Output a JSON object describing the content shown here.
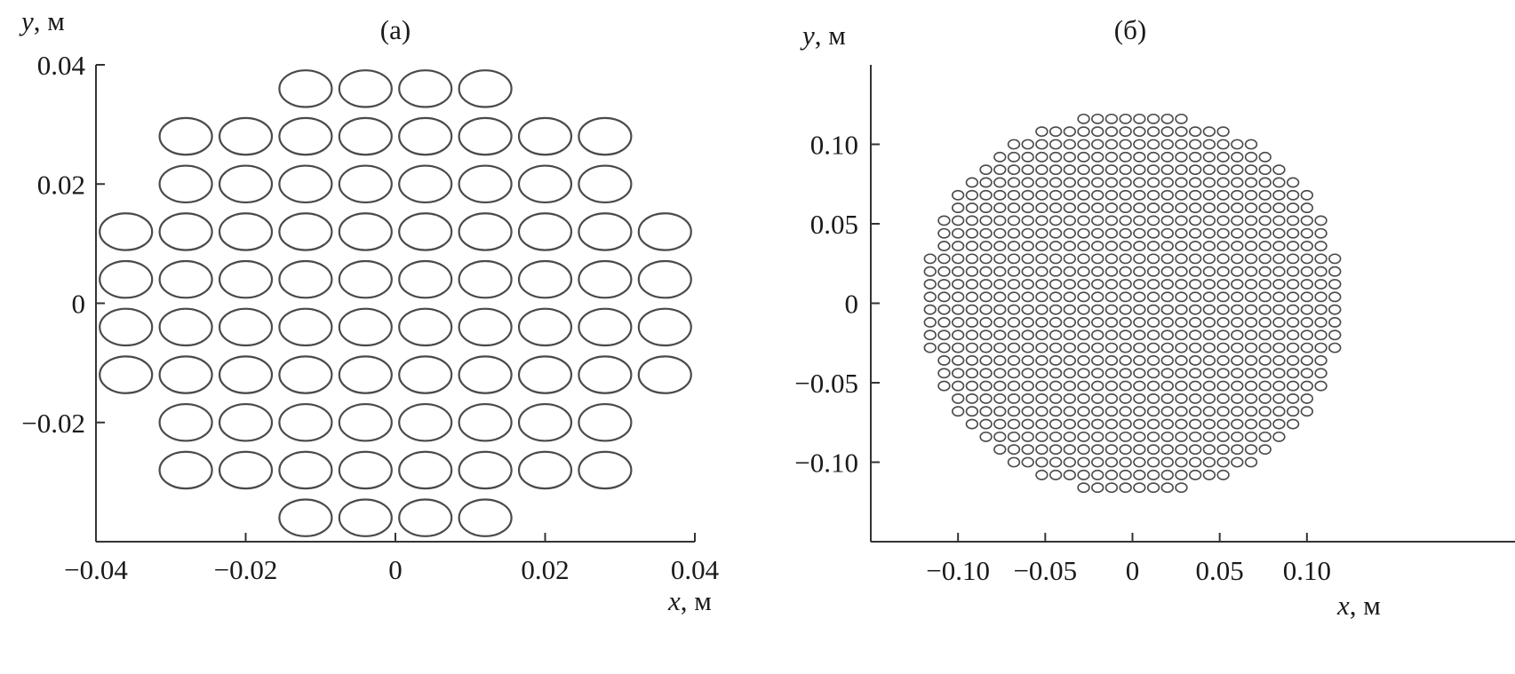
{
  "colors": {
    "axis": "#333333",
    "marker": "#4a4a4a",
    "text": "#1a1a1a",
    "background": "#ffffff"
  },
  "chart_data": [
    {
      "type": "scatter",
      "title": "(а)",
      "xlabel": {
        "var": "x",
        "unit": ", м"
      },
      "ylabel": {
        "var": "y",
        "unit": ", м"
      },
      "xlim": [
        -0.04,
        0.04
      ],
      "ylim": [
        -0.04,
        0.04
      ],
      "xticks": [
        {
          "value": -0.04,
          "label": "−0.04"
        },
        {
          "value": -0.02,
          "label": "−0.02"
        },
        {
          "value": 0,
          "label": "0"
        },
        {
          "value": 0.02,
          "label": "0.02"
        },
        {
          "value": 0.04,
          "label": "0.04"
        }
      ],
      "yticks": [
        {
          "value": 0.04,
          "label": "0.04"
        },
        {
          "value": 0.02,
          "label": "0.02"
        },
        {
          "value": 0,
          "label": "0"
        },
        {
          "value": -0.02,
          "label": "−0.02"
        }
      ],
      "grid": false,
      "marker": {
        "shape": "circle",
        "fill": "none",
        "diameter": 0.007
      },
      "rows": [
        {
          "y": 0.036,
          "x": [
            -0.012,
            -0.004,
            0.004,
            0.012
          ]
        },
        {
          "y": 0.028,
          "x": [
            -0.028,
            -0.02,
            -0.012,
            -0.004,
            0.004,
            0.012,
            0.02,
            0.028
          ]
        },
        {
          "y": 0.02,
          "x": [
            -0.028,
            -0.02,
            -0.012,
            -0.004,
            0.004,
            0.012,
            0.02,
            0.028
          ]
        },
        {
          "y": 0.012,
          "x": [
            -0.036,
            -0.028,
            -0.02,
            -0.012,
            -0.004,
            0.004,
            0.012,
            0.02,
            0.028,
            0.036
          ]
        },
        {
          "y": 0.004,
          "x": [
            -0.036,
            -0.028,
            -0.02,
            -0.012,
            -0.004,
            0.004,
            0.012,
            0.02,
            0.028,
            0.036
          ]
        },
        {
          "y": -0.004,
          "x": [
            -0.036,
            -0.028,
            -0.02,
            -0.012,
            -0.004,
            0.004,
            0.012,
            0.02,
            0.028,
            0.036
          ]
        },
        {
          "y": -0.012,
          "x": [
            -0.036,
            -0.028,
            -0.02,
            -0.012,
            -0.004,
            0.004,
            0.012,
            0.02,
            0.028,
            0.036
          ]
        },
        {
          "y": -0.02,
          "x": [
            -0.028,
            -0.02,
            -0.012,
            -0.004,
            0.004,
            0.012,
            0.02,
            0.028
          ]
        },
        {
          "y": -0.028,
          "x": [
            -0.028,
            -0.02,
            -0.012,
            -0.004,
            0.004,
            0.012,
            0.02,
            0.028
          ]
        },
        {
          "y": -0.036,
          "x": [
            -0.012,
            -0.004,
            0.004,
            0.012
          ]
        }
      ]
    },
    {
      "type": "scatter",
      "title": "(б)",
      "xlabel": {
        "var": "x",
        "unit": ", м"
      },
      "ylabel": {
        "var": "y",
        "unit": ", м"
      },
      "xlim": [
        -0.15,
        0.15
      ],
      "ylim": [
        -0.15,
        0.15
      ],
      "xticks": [
        {
          "value": -0.1,
          "label": "−0.10"
        },
        {
          "value": -0.05,
          "label": "−0.05"
        },
        {
          "value": 0,
          "label": "0"
        },
        {
          "value": 0.05,
          "label": "0.05"
        },
        {
          "value": 0.1,
          "label": "0.10"
        }
      ],
      "yticks": [
        {
          "value": 0.1,
          "label": "0.10"
        },
        {
          "value": 0.05,
          "label": "0.05"
        },
        {
          "value": 0,
          "label": "0"
        },
        {
          "value": -0.05,
          "label": "−0.05"
        },
        {
          "value": -0.1,
          "label": "−0.10"
        }
      ],
      "grid": false,
      "marker": {
        "shape": "circle",
        "fill": "none",
        "diameter": 0.0065
      },
      "lattice": {
        "pitch": 0.008,
        "offset": 0.004,
        "radius": 0.121
      }
    }
  ]
}
